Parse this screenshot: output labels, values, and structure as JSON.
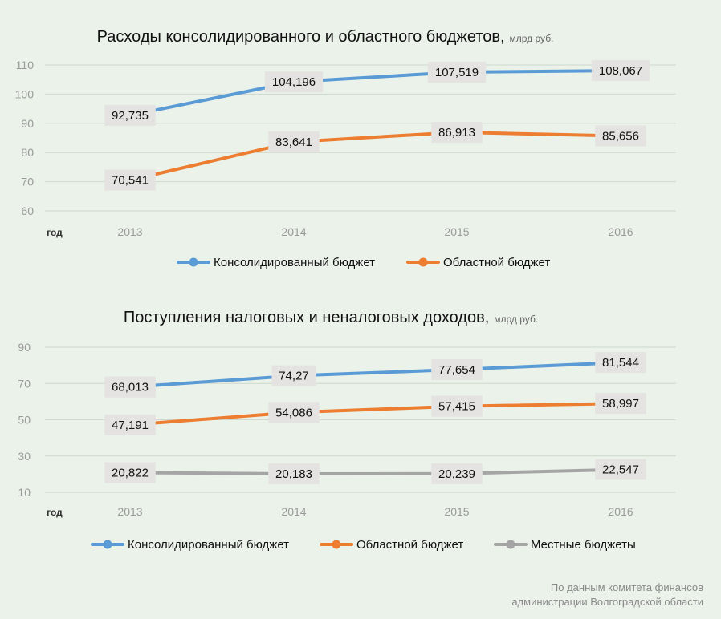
{
  "source": [
    "По данным комитета финансов",
    "администрации Волгоградской области"
  ],
  "chart_data": [
    {
      "type": "line",
      "title": "Расходы консолидированного и областного бюджетов,",
      "unit": "млрд руб.",
      "xlabel": "год",
      "categories": [
        "2013",
        "2014",
        "2015",
        "2016"
      ],
      "ylim": [
        60,
        110
      ],
      "yticks": [
        60,
        70,
        80,
        90,
        100,
        110
      ],
      "grid": true,
      "legend_position": "bottom",
      "series": [
        {
          "name": "Консолидированный бюджет",
          "color": "#5b9bd5",
          "values": [
            92.735,
            104.196,
            107.519,
            108.067
          ],
          "labels": [
            "92,735",
            "104,196",
            "107,519",
            "108,067"
          ]
        },
        {
          "name": "Областной бюджет",
          "color": "#ed7d31",
          "values": [
            70.541,
            83.641,
            86.913,
            85.656
          ],
          "labels": [
            "70,541",
            "83,641",
            "86,913",
            "85,656"
          ]
        }
      ]
    },
    {
      "type": "line",
      "title": "Поступления налоговых и неналоговых доходов,",
      "unit": "млрд руб.",
      "xlabel": "год",
      "categories": [
        "2013",
        "2014",
        "2015",
        "2016"
      ],
      "ylim": [
        10,
        90
      ],
      "yticks": [
        10,
        30,
        50,
        70,
        90
      ],
      "grid": true,
      "legend_position": "bottom",
      "series": [
        {
          "name": "Консолидированный бюджет",
          "color": "#5b9bd5",
          "values": [
            68.013,
            74.27,
            77.654,
            81.544
          ],
          "labels": [
            "68,013",
            "74,27",
            "77,654",
            "81,544"
          ]
        },
        {
          "name": "Областной бюджет",
          "color": "#ed7d31",
          "values": [
            47.191,
            54.086,
            57.415,
            58.997
          ],
          "labels": [
            "47,191",
            "54,086",
            "57,415",
            "58,997"
          ]
        },
        {
          "name": "Местные бюджеты",
          "color": "#a5a5a5",
          "values": [
            20.822,
            20.183,
            20.239,
            22.547
          ],
          "labels": [
            "20,822",
            "20,183",
            "20,239",
            "22,547"
          ]
        }
      ]
    }
  ]
}
